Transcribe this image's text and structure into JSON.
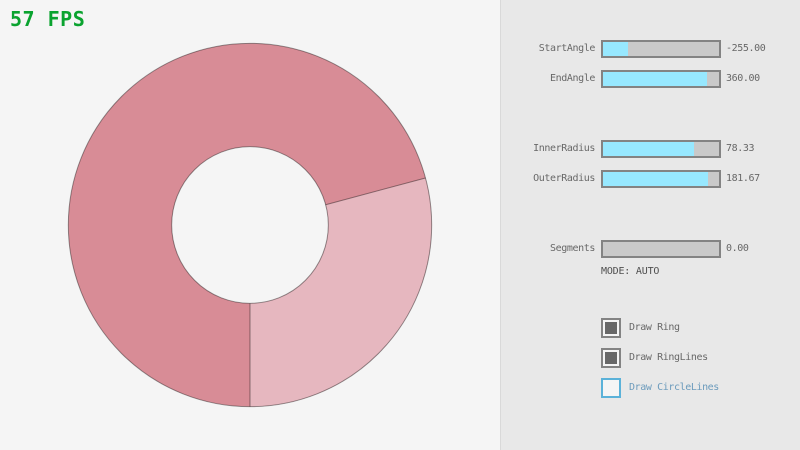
{
  "fps": {
    "text": "57 FPS",
    "color": "#0aa32f"
  },
  "ring": {
    "start_angle": -255.0,
    "end_angle": 360.0,
    "inner_radius": 78.33,
    "outer_radius": 181.67,
    "segments": 0,
    "light_sector": {
      "from_deg": 0,
      "to_deg": 105
    },
    "colors": {
      "dark": "#d88c96",
      "light": "#e6b7bf",
      "outline": "rgba(0,0,0,0.4)",
      "hole": "#f5f5f5"
    }
  },
  "panel": {
    "sliders": [
      {
        "label": "StartAngle",
        "value": "-255.00",
        "percent": 21.7
      },
      {
        "label": "EndAngle",
        "value": "360.00",
        "percent": 90.0
      },
      {
        "label": "InnerRadius",
        "value": "78.33",
        "percent": 78.3
      },
      {
        "label": "OuterRadius",
        "value": "181.67",
        "percent": 90.8
      },
      {
        "label": "Segments",
        "value": "0.00",
        "percent": 0.0
      }
    ],
    "mode_text": "MODE: AUTO",
    "checkboxes": [
      {
        "label": "Draw Ring",
        "checked": true,
        "focused": false
      },
      {
        "label": "Draw RingLines",
        "checked": true,
        "focused": false
      },
      {
        "label": "Draw CircleLines",
        "checked": false,
        "focused": true
      }
    ]
  },
  "colors": {
    "background": "#f5f5f5",
    "panel": "#e8e8e8",
    "panel_border": "#d9d9d9",
    "slider_border": "#838383",
    "slider_track": "#c9c9c9",
    "slider_fill": "#97e8ff",
    "text": "#686868",
    "mode_text": "#4f4f4f",
    "focus_border": "#5bb2d9",
    "focus_text": "#6c9bbc",
    "check": "#686868",
    "checkbox_bg": "#f5f5f5"
  }
}
